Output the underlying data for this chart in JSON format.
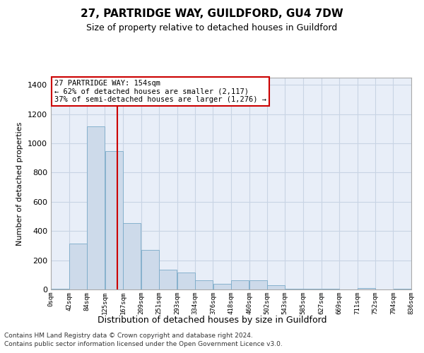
{
  "title": "27, PARTRIDGE WAY, GUILDFORD, GU4 7DW",
  "subtitle": "Size of property relative to detached houses in Guildford",
  "xlabel": "Distribution of detached houses by size in Guildford",
  "ylabel": "Number of detached properties",
  "bar_color": "#cddaea",
  "bar_edge_color": "#7aaac8",
  "grid_color": "#c8d4e4",
  "background_color": "#e8eef8",
  "vline_x": 154,
  "vline_color": "#cc0000",
  "bin_edges": [
    0,
    42,
    84,
    125,
    167,
    209,
    251,
    293,
    334,
    376,
    418,
    460,
    502,
    543,
    585,
    627,
    669,
    711,
    752,
    794,
    836
  ],
  "bin_labels": [
    "0sqm",
    "42sqm",
    "84sqm",
    "125sqm",
    "167sqm",
    "209sqm",
    "251sqm",
    "293sqm",
    "334sqm",
    "376sqm",
    "418sqm",
    "460sqm",
    "502sqm",
    "543sqm",
    "585sqm",
    "627sqm",
    "669sqm",
    "711sqm",
    "752sqm",
    "794sqm",
    "836sqm"
  ],
  "bar_heights": [
    5,
    315,
    1115,
    945,
    455,
    270,
    135,
    115,
    65,
    40,
    65,
    65,
    30,
    5,
    5,
    5,
    0,
    10,
    0,
    5
  ],
  "ylim": [
    0,
    1450
  ],
  "yticks": [
    0,
    200,
    400,
    600,
    800,
    1000,
    1200,
    1400
  ],
  "annotation_text": "27 PARTRIDGE WAY: 154sqm\n← 62% of detached houses are smaller (2,117)\n37% of semi-detached houses are larger (1,276) →",
  "annotation_box_color": "#ffffff",
  "annotation_box_edge": "#cc0000",
  "footnote1": "Contains HM Land Registry data © Crown copyright and database right 2024.",
  "footnote2": "Contains public sector information licensed under the Open Government Licence v3.0."
}
